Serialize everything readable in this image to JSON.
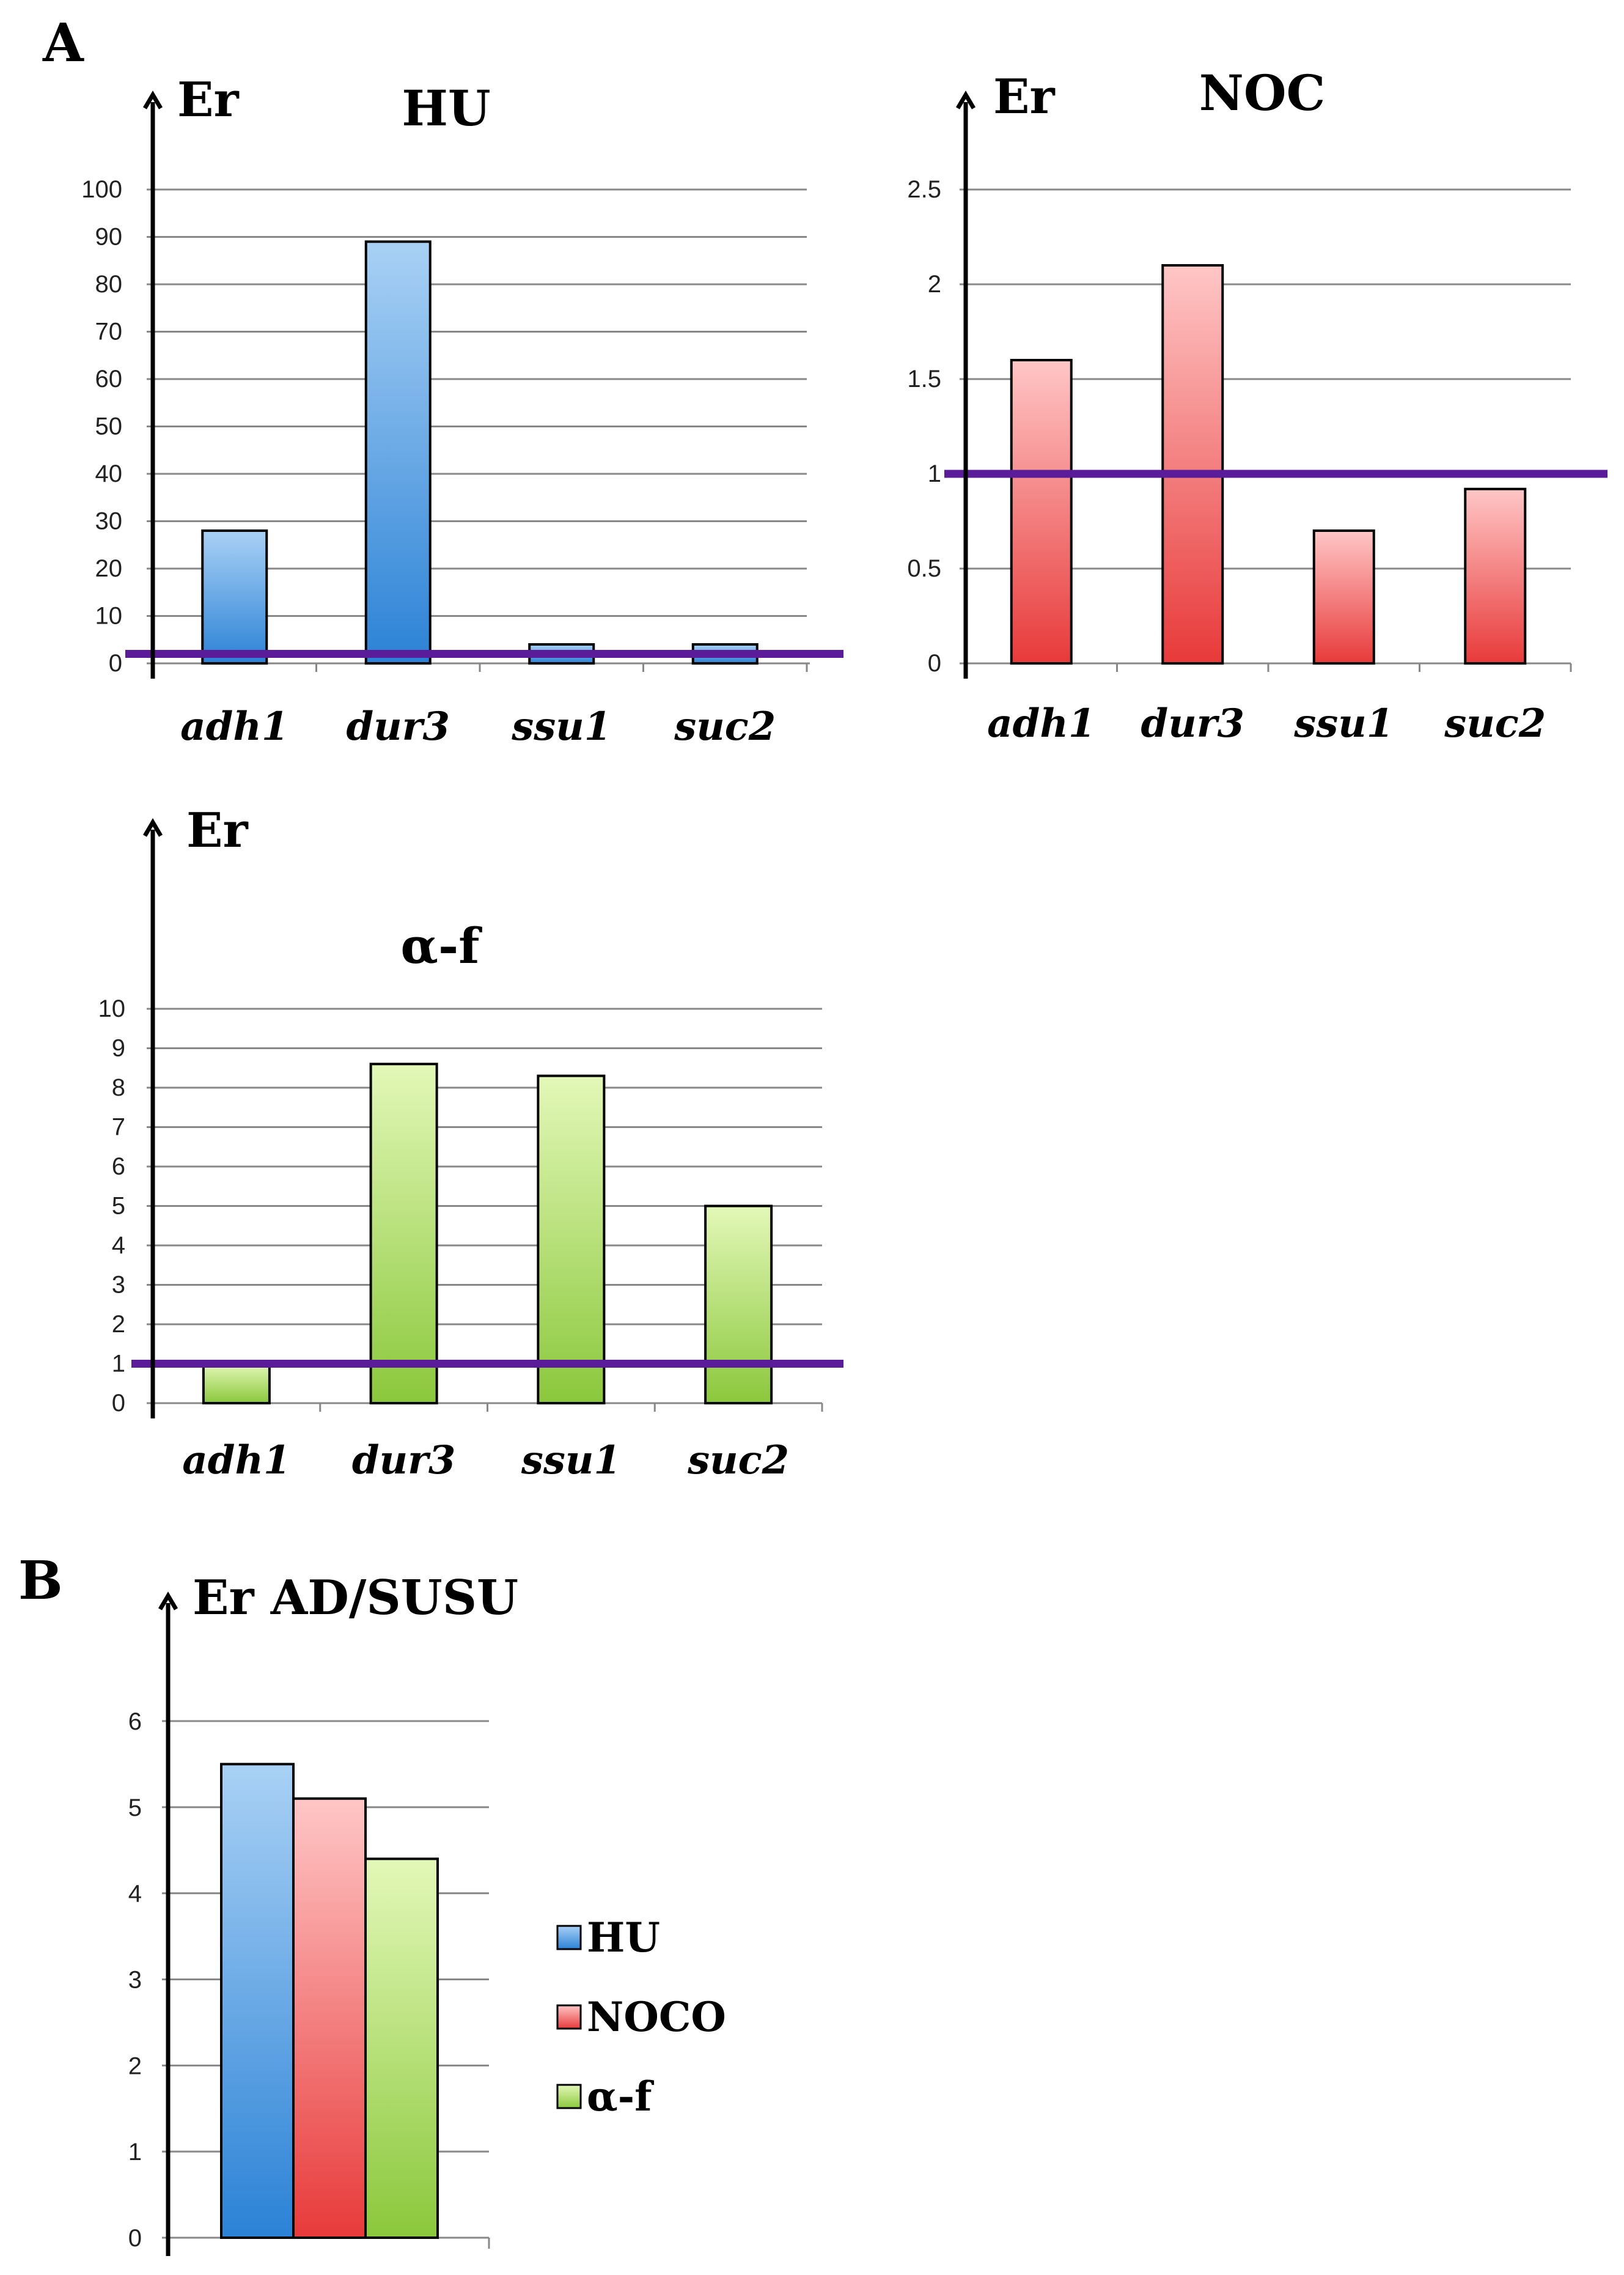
{
  "figure": {
    "panel_a_label": "A",
    "panel_b_label": "B"
  },
  "colors": {
    "hu_top": "#a9d1f5",
    "hu_bottom": "#2b82d6",
    "noc_top": "#ffc6c6",
    "noc_bottom": "#e83a3a",
    "af_top": "#e3f8b8",
    "af_bottom": "#8bc83c",
    "threshold": "#5b1c99",
    "grid": "#888888",
    "axis": "#000000"
  },
  "chart_data": [
    {
      "id": "hu",
      "type": "bar",
      "title": "HU",
      "ylabel": "Er",
      "categories": [
        "adh1",
        "dur3",
        "ssu1",
        "suc2"
      ],
      "values": [
        28,
        89,
        4,
        4
      ],
      "ylim": [
        0,
        100
      ],
      "yticks": [
        0,
        10,
        20,
        30,
        40,
        50,
        60,
        70,
        80,
        90,
        100
      ],
      "ytick_labels": [
        "0",
        "10",
        "20",
        "30",
        "40",
        "50",
        "60",
        "70",
        "80",
        "90",
        "100"
      ],
      "threshold": 2,
      "grid": true,
      "color": "hu"
    },
    {
      "id": "noc",
      "type": "bar",
      "title": "NOC",
      "ylabel": "Er",
      "categories": [
        "adh1",
        "dur3",
        "ssu1",
        "suc2"
      ],
      "values": [
        1.6,
        2.1,
        0.7,
        0.92
      ],
      "ylim": [
        0,
        2.5
      ],
      "yticks": [
        0,
        0.5,
        1,
        1.5,
        2,
        2.5
      ],
      "ytick_labels": [
        "0",
        "0.5",
        "1",
        "1.5",
        "2",
        "2.5"
      ],
      "threshold": 1,
      "grid": true,
      "color": "noc"
    },
    {
      "id": "af",
      "type": "bar",
      "title": "α-f",
      "ylabel": "Er",
      "categories": [
        "adh1",
        "dur3",
        "ssu1",
        "suc2"
      ],
      "values": [
        1,
        8.6,
        8.3,
        5
      ],
      "ylim": [
        0,
        10
      ],
      "yticks": [
        0,
        1,
        2,
        3,
        4,
        5,
        6,
        7,
        8,
        9,
        10
      ],
      "ytick_labels": [
        "0",
        "1",
        "2",
        "3",
        "4",
        "5",
        "6",
        "7",
        "8",
        "9",
        "10"
      ],
      "threshold": 1,
      "grid": true,
      "color": "af"
    },
    {
      "id": "adsusu",
      "type": "bar",
      "title": "",
      "ylabel": "Er AD/SUSU",
      "categories": [
        ""
      ],
      "series": [
        {
          "name": "HU",
          "values": [
            5.5
          ],
          "color": "hu"
        },
        {
          "name": "NOCO",
          "values": [
            5.1
          ],
          "color": "noc"
        },
        {
          "name": "α-f",
          "values": [
            4.4
          ],
          "color": "af"
        }
      ],
      "ylim": [
        0,
        6
      ],
      "yticks": [
        0,
        1,
        2,
        3,
        4,
        5,
        6
      ],
      "ytick_labels": [
        "0",
        "1",
        "2",
        "3",
        "4",
        "5",
        "6"
      ],
      "grid": true,
      "legend": "right"
    }
  ]
}
